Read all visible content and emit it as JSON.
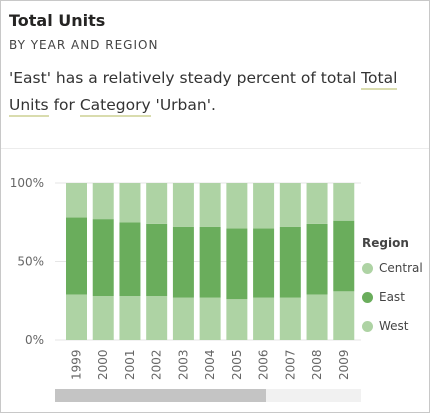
{
  "card": {
    "title": "Total Units",
    "subtitle": "BY YEAR AND REGION",
    "insight": {
      "part1": "'East' has a relatively steady percent of total ",
      "link1": "Total Units",
      "part2": " for ",
      "link2": "Category",
      "part3": " 'Urban'."
    }
  },
  "legend": {
    "title": "Region",
    "items": [
      {
        "label": "Central",
        "color": "#aed3a4"
      },
      {
        "label": "East",
        "color": "#6aad5c"
      },
      {
        "label": "West",
        "color": "#aed3a4"
      }
    ]
  },
  "chart_data": {
    "type": "bar",
    "stacked": "percent",
    "categories": [
      "1999",
      "2000",
      "2001",
      "2002",
      "2003",
      "2004",
      "2005",
      "2006",
      "2007",
      "2008",
      "2009"
    ],
    "series": [
      {
        "name": "West",
        "color": "#aed3a4",
        "values": [
          29,
          28,
          28,
          28,
          27,
          27,
          26,
          27,
          27,
          29,
          31
        ]
      },
      {
        "name": "East",
        "color": "#6aad5c",
        "values": [
          49,
          49,
          47,
          46,
          45,
          45,
          45,
          44,
          45,
          45,
          45
        ]
      },
      {
        "name": "Central",
        "color": "#aed3a4",
        "values": [
          22,
          23,
          25,
          26,
          28,
          28,
          29,
          29,
          28,
          26,
          24
        ]
      }
    ],
    "yticks": [
      "0%",
      "50%",
      "100%"
    ],
    "ytick_values": [
      0,
      50,
      100
    ],
    "ylim": [
      0,
      100
    ],
    "grid": true,
    "legend_position": "right",
    "scrollbar": {
      "position_fraction": 0,
      "visible_fraction": 0.69
    }
  }
}
